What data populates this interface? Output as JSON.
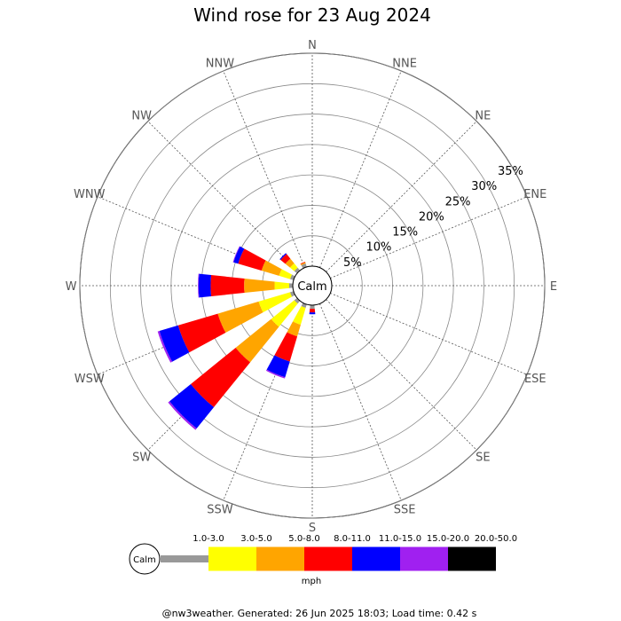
{
  "chart_data": {
    "type": "windrose",
    "title": "Wind rose for 23 Aug 2024",
    "calm_label": "Calm",
    "directions": [
      "N",
      "NNE",
      "NE",
      "ENE",
      "E",
      "ESE",
      "SE",
      "SSE",
      "S",
      "SSW",
      "SW",
      "WSW",
      "W",
      "WNW",
      "NW",
      "NNW"
    ],
    "radial_ticks": [
      "5%",
      "10%",
      "15%",
      "20%",
      "25%",
      "30%",
      "35%"
    ],
    "radial_tick_values": [
      5,
      10,
      15,
      20,
      25,
      30,
      35
    ],
    "rmax_percent": 35,
    "unit_label": "mph",
    "bins": [
      {
        "label": "1.0-3.0",
        "color": "#999999"
      },
      {
        "label": "3.0-5.0",
        "color": "#ffff00"
      },
      {
        "label": "5.0-8.0",
        "color": "#ffa500"
      },
      {
        "label": "8.0-11.0",
        "color": "#ff0000"
      },
      {
        "label": "11.0-15.0",
        "color": "#0000ff"
      },
      {
        "label": "15.0-20.0",
        "color": "#a020f0"
      },
      {
        "label": "20.0-50.0",
        "color": "#000000"
      }
    ],
    "cumulative_percent": {
      "S": [
        0.6,
        0.6,
        0.6,
        1.2,
        1.5,
        1.5,
        1.5
      ],
      "SSW": [
        0.6,
        3.5,
        5.5,
        9.8,
        12.5,
        12.7,
        12.7
      ],
      "SW": [
        0.6,
        5.5,
        13.0,
        22.5,
        27.0,
        27.3,
        27.3
      ],
      "WSW": [
        0.6,
        6.0,
        13.0,
        19.8,
        23.0,
        23.3,
        23.3
      ],
      "W": [
        0.6,
        3.0,
        8.0,
        13.5,
        15.5,
        15.6,
        15.6
      ],
      "WNW": [
        0.6,
        2.5,
        5.5,
        9.5,
        10.3,
        10.4,
        10.4
      ],
      "NW": [
        0.6,
        1.5,
        2.5,
        3.5,
        3.7,
        3.7,
        3.7
      ],
      "NNW": [
        0.6,
        0.6,
        0.8,
        0.9,
        0.9,
        0.9,
        0.9
      ]
    }
  },
  "footer": "@nw3weather. Generated: 26 Jun 2025 18:03; Load time: 0.42 s"
}
